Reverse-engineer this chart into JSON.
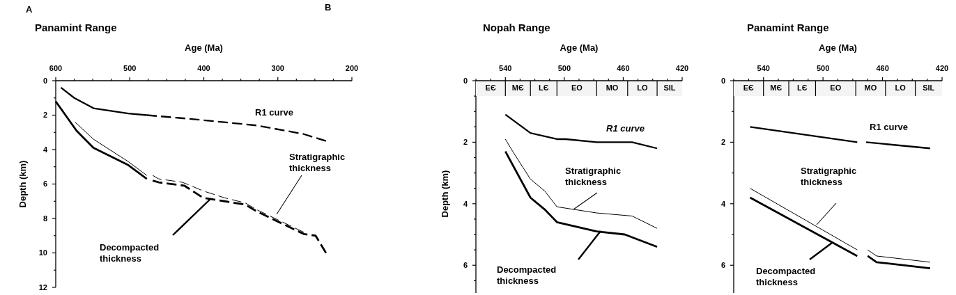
{
  "chart_data": [
    {
      "type": "line",
      "title": "Panamint Range",
      "xlabel": "Age (Ma)",
      "ylabel": "Depth (km)",
      "xlim": [
        600,
        200
      ],
      "xticks": [
        600,
        {
          "value": 575,
          "label": null
        },
        {
          "value": 550,
          "label": null
        },
        {
          "value": 525,
          "label": null
        },
        500,
        {
          "value": 475,
          "label": null
        },
        {
          "value": 450,
          "label": null
        },
        {
          "value": 425,
          "label": null
        },
        400,
        {
          "value": 375,
          "label": null
        },
        {
          "value": 350,
          "label": null
        },
        {
          "value": 325,
          "label": null
        },
        300,
        {
          "value": 275,
          "label": null
        },
        {
          "value": 250,
          "label": null
        },
        {
          "value": 225,
          "label": null
        },
        200
      ],
      "ylim": [
        12,
        0
      ],
      "yticks": [
        0,
        {
          "value": 1,
          "label": null
        },
        2,
        {
          "value": 3,
          "label": null
        },
        4,
        {
          "value": 5,
          "label": null
        },
        6,
        {
          "value": 7,
          "label": null
        },
        8,
        {
          "value": 9,
          "label": null
        },
        10,
        {
          "value": 11,
          "label": null
        },
        12
      ],
      "series": [
        {
          "color": "#000000",
          "x": [
            593,
            575,
            549,
            502,
            477
          ],
          "values": [
            0.4,
            1.0,
            1.6,
            1.9,
            2.0
          ]
        },
        {
          "color": "#000000",
          "line_style": "dashed",
          "x": [
            477,
            423,
            375,
            328,
            265,
            235
          ],
          "values": [
            2.0,
            2.2,
            2.4,
            2.6,
            3.1,
            3.5
          ]
        },
        {
          "color": "#000000",
          "x": [
            574,
            549,
            502,
            477
          ],
          "values": [
            2.4,
            3.4,
            4.7,
            5.5
          ]
        },
        {
          "color": "#000000",
          "line_style": "dashed",
          "x": [
            469,
            461,
            429,
            423,
            401,
            372,
            344,
            328,
            265
          ],
          "values": [
            5.5,
            5.7,
            5.9,
            6.0,
            6.4,
            6.8,
            7.1,
            7.5,
            8.8
          ]
        },
        {
          "color": "#000000",
          "x": [
            600,
            572,
            549,
            502,
            477
          ],
          "values": [
            1.2,
            2.9,
            3.9,
            4.9,
            5.7
          ]
        },
        {
          "color": "#000000",
          "line_style": "dashed",
          "x": [
            469,
            461,
            426,
            401,
            372,
            344,
            328,
            265,
            249,
            235
          ],
          "values": [
            5.8,
            5.9,
            6.1,
            6.8,
            7.0,
            7.2,
            7.6,
            8.9,
            9.0,
            10.0
          ]
        }
      ],
      "annotations": [
        "A",
        "R1 curve",
        "Stratigraphic thickness",
        "Decompacted thickness"
      ]
    },
    {
      "type": "line",
      "title": "Nopah Range",
      "xlabel": "Age (Ma)",
      "ylabel": "Depth (km)",
      "xlim": [
        560,
        420
      ],
      "xticks": [
        {
          "value": 560,
          "label": null
        },
        {
          "value": 550,
          "label": null
        },
        540,
        {
          "value": 530,
          "label": null
        },
        {
          "value": 520,
          "label": null
        },
        {
          "value": 510,
          "label": null
        },
        500,
        {
          "value": 490,
          "label": null
        },
        {
          "value": 480,
          "label": null
        },
        {
          "value": 470,
          "label": null
        },
        460,
        {
          "value": 450,
          "label": null
        },
        {
          "value": 440,
          "label": null
        },
        {
          "value": 430,
          "label": null
        },
        420
      ],
      "ylim": [
        6.9,
        0
      ],
      "yticks": [
        0,
        {
          "value": 0.5,
          "label": null
        },
        {
          "value": 1,
          "label": null
        },
        {
          "value": 1.5,
          "label": null
        },
        2,
        {
          "value": 2.5,
          "label": null
        },
        {
          "value": 3,
          "label": null
        },
        {
          "value": 3.5,
          "label": null
        },
        4,
        {
          "value": 4.5,
          "label": null
        },
        {
          "value": 5,
          "label": null
        },
        {
          "value": 5.5,
          "label": null
        },
        6,
        {
          "value": 6.5,
          "label": null
        }
      ],
      "bands": [
        {
          "axis": "x",
          "from": 560,
          "to": 540,
          "label": "EЄ",
          "color": "#f4f4f4"
        },
        {
          "axis": "x",
          "from": 540,
          "to": 523,
          "label": "MЄ",
          "color": "#f4f4f4"
        },
        {
          "axis": "x",
          "from": 523,
          "to": 505,
          "label": "LЄ",
          "color": "#f4f4f4"
        },
        {
          "axis": "x",
          "from": 505,
          "to": 478,
          "label": "EO",
          "color": "#f4f4f4"
        },
        {
          "axis": "x",
          "from": 478,
          "to": 457,
          "label": "MO",
          "color": "#f4f4f4"
        },
        {
          "axis": "x",
          "from": 457,
          "to": 437,
          "label": "LO",
          "color": "#f4f4f4"
        },
        {
          "axis": "x",
          "from": 437,
          "to": 420,
          "label": "SIL",
          "color": "#f4f4f4"
        }
      ],
      "series": [
        {
          "color": "#000000",
          "x": [
            540,
            523,
            505,
            499,
            478,
            454,
            437
          ],
          "values": [
            1.1,
            1.7,
            1.9,
            1.9,
            2.0,
            2.0,
            2.2
          ]
        },
        {
          "color": "#000000",
          "x": [
            540,
            535,
            523,
            513,
            505,
            478,
            454,
            437
          ],
          "values": [
            1.9,
            2.3,
            3.2,
            3.6,
            4.1,
            4.3,
            4.4,
            4.8
          ]
        },
        {
          "color": "#000000",
          "x": [
            540,
            523,
            513,
            505,
            478,
            459,
            437
          ],
          "values": [
            2.3,
            3.8,
            4.2,
            4.6,
            4.9,
            5.0,
            5.4
          ]
        }
      ],
      "annotations": [
        "B",
        "R1 curve",
        "Stratigraphic thickness",
        "Decompacted thickness"
      ]
    },
    {
      "type": "line",
      "title": "Panamint Range",
      "xlabel": "Age (Ma)",
      "xlim": [
        560,
        420
      ],
      "xticks": [
        {
          "value": 560,
          "label": null
        },
        {
          "value": 550,
          "label": null
        },
        540,
        {
          "value": 530,
          "label": null
        },
        {
          "value": 520,
          "label": null
        },
        {
          "value": 510,
          "label": null
        },
        500,
        {
          "value": 490,
          "label": null
        },
        {
          "value": 480,
          "label": null
        },
        {
          "value": 470,
          "label": null
        },
        460,
        {
          "value": 450,
          "label": null
        },
        {
          "value": 440,
          "label": null
        },
        {
          "value": 430,
          "label": null
        },
        420
      ],
      "ylim": [
        6.9,
        0
      ],
      "yticks": [
        0,
        {
          "value": 1,
          "label": null
        },
        2,
        {
          "value": 3,
          "label": null
        },
        4,
        {
          "value": 5,
          "label": null
        },
        6
      ],
      "bands": [
        {
          "axis": "x",
          "from": 560,
          "to": 540,
          "label": "EЄ",
          "color": "#f4f4f4"
        },
        {
          "axis": "x",
          "from": 540,
          "to": 523,
          "label": "MЄ",
          "color": "#f4f4f4"
        },
        {
          "axis": "x",
          "from": 523,
          "to": 505,
          "label": "LЄ",
          "color": "#f4f4f4"
        },
        {
          "axis": "x",
          "from": 505,
          "to": 478,
          "label": "EO",
          "color": "#f4f4f4"
        },
        {
          "axis": "x",
          "from": 478,
          "to": 458,
          "label": "MO",
          "color": "#f4f4f4"
        },
        {
          "axis": "x",
          "from": 458,
          "to": 438,
          "label": "LO",
          "color": "#f4f4f4"
        },
        {
          "axis": "x",
          "from": 438,
          "to": 420,
          "label": "SIL",
          "color": "#f4f4f4"
        }
      ],
      "series": [
        {
          "color": "#000000",
          "x": [
            549,
            477,
            474,
            471,
            428
          ],
          "values": [
            1.5,
            2.0,
            null,
            2.0,
            2.2
          ]
        },
        {
          "color": "#000000",
          "x": [
            549,
            477,
            474,
            470,
            464,
            428
          ],
          "values": [
            3.5,
            5.5,
            null,
            5.5,
            5.7,
            5.9
          ]
        },
        {
          "color": "#000000",
          "x": [
            549,
            477,
            474,
            470,
            464,
            428
          ],
          "values": [
            3.8,
            5.7,
            null,
            5.7,
            5.9,
            6.1
          ]
        }
      ],
      "annotations": [
        "R1 curve",
        "Stratigraphic thickness",
        "Decompacted thickness"
      ]
    }
  ]
}
